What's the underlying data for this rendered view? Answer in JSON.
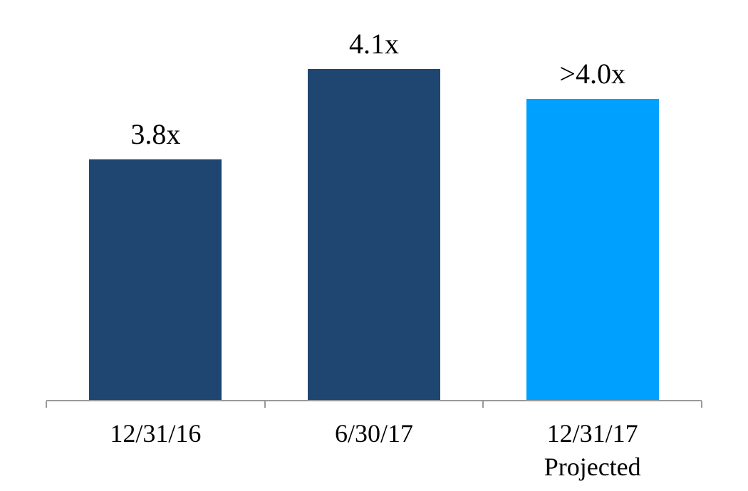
{
  "chart_data": {
    "type": "bar",
    "categories": [
      "12/31/16",
      "6/30/17",
      "12/31/17\nProjected"
    ],
    "values": [
      3.8,
      4.1,
      4.0
    ],
    "value_labels": [
      "3.8x",
      "4.1x",
      ">4.0x"
    ],
    "bar_colors": [
      "#1F4670",
      "#1F4670",
      "#00A0FF"
    ],
    "title": "",
    "xlabel": "",
    "ylabel": "",
    "ylim": [
      3.0,
      4.35
    ],
    "grid": false,
    "legend": "none",
    "axis_color": "#999999",
    "label_color": "#000000"
  }
}
